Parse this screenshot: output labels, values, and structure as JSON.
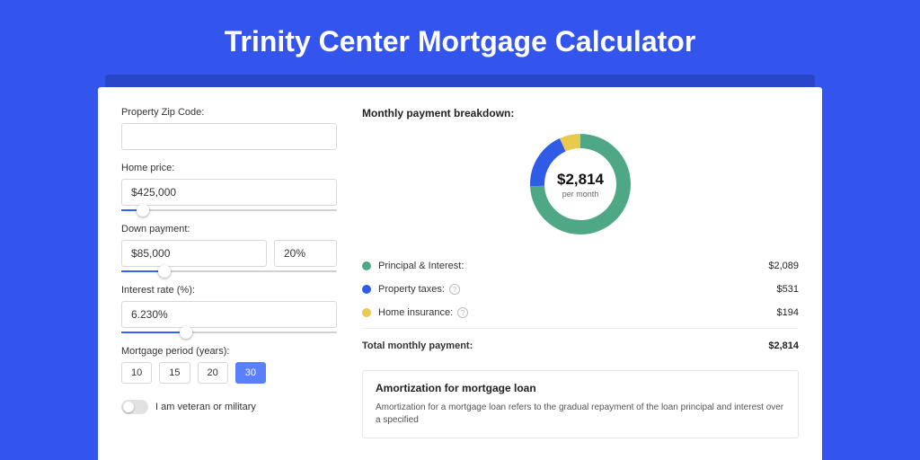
{
  "page": {
    "title": "Trinity Center Mortgage Calculator",
    "bg_color": "#3355ee",
    "band_color": "#2a46c8"
  },
  "form": {
    "zip": {
      "label": "Property Zip Code:",
      "value": ""
    },
    "home_price": {
      "label": "Home price:",
      "value": "$425,000",
      "slider_pct": 10
    },
    "down_payment": {
      "label": "Down payment:",
      "amount": "$85,000",
      "percent": "20%",
      "slider_pct": 20
    },
    "interest_rate": {
      "label": "Interest rate (%):",
      "value": "6.230%",
      "slider_pct": 30
    },
    "period": {
      "label": "Mortgage period (years):",
      "options": [
        "10",
        "15",
        "20",
        "30"
      ],
      "active": "30"
    },
    "veteran": {
      "label": "I am veteran or military",
      "on": false
    }
  },
  "breakdown": {
    "title": "Monthly payment breakdown:",
    "center_value": "$2,814",
    "center_sub": "per month",
    "donut": {
      "type": "donut",
      "segments": [
        {
          "key": "pi",
          "color": "#4fa885",
          "pct": 74.2
        },
        {
          "key": "tax",
          "color": "#2f5be7",
          "pct": 18.9
        },
        {
          "key": "ins",
          "color": "#eac94f",
          "pct": 6.9
        }
      ],
      "stroke_width": 16,
      "radius": 48,
      "bg_color": "#ffffff"
    },
    "rows": [
      {
        "dot": "#4fa885",
        "label": "Principal & Interest:",
        "info": false,
        "amount": "$2,089"
      },
      {
        "dot": "#2f5be7",
        "label": "Property taxes:",
        "info": true,
        "amount": "$531"
      },
      {
        "dot": "#eac94f",
        "label": "Home insurance:",
        "info": true,
        "amount": "$194"
      }
    ],
    "total": {
      "label": "Total monthly payment:",
      "amount": "$2,814"
    }
  },
  "amortization": {
    "title": "Amortization for mortgage loan",
    "text": "Amortization for a mortgage loan refers to the gradual repayment of the loan principal and interest over a specified"
  }
}
